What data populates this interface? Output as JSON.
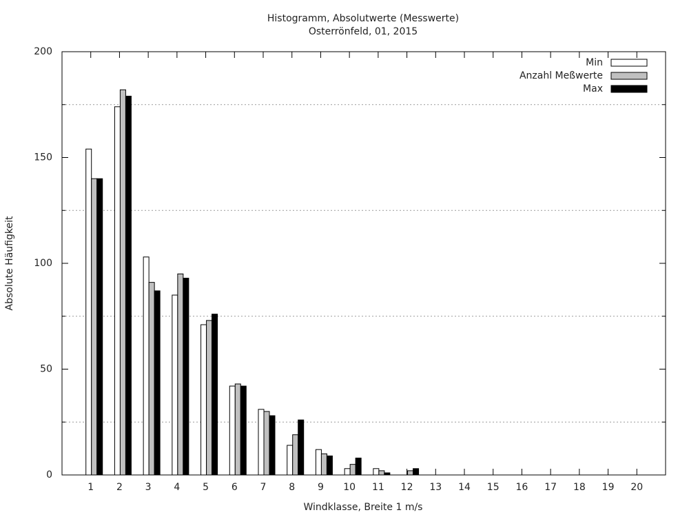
{
  "chart_data": {
    "type": "bar",
    "title": "Histogramm, Absolutwerte (Messwerte)",
    "subtitle": "Osterrönfeld, 01, 2015",
    "x_label": "Windklasse, Breite 1 m/s",
    "y_label": "Absolute Häufigkeit",
    "categories": [
      "1",
      "2",
      "3",
      "4",
      "5",
      "6",
      "7",
      "8",
      "9",
      "10",
      "11",
      "12",
      "13",
      "14",
      "15",
      "16",
      "17",
      "18",
      "19",
      "20"
    ],
    "series": [
      {
        "name": "Min",
        "color": "#ffffff",
        "values": [
          154,
          174,
          103,
          85,
          71,
          42,
          31,
          14,
          12,
          3,
          3,
          0,
          0,
          0,
          0,
          0,
          0,
          0,
          0,
          0
        ]
      },
      {
        "name": "Anzahl Meßwerte",
        "color": "#c0c0c0",
        "values": [
          140,
          182,
          91,
          95,
          73,
          43,
          30,
          19,
          10,
          5,
          2,
          2,
          0,
          0,
          0,
          0,
          0,
          0,
          0,
          0
        ]
      },
      {
        "name": "Max",
        "color": "#000000",
        "values": [
          140,
          179,
          87,
          93,
          76,
          42,
          28,
          26,
          9,
          8,
          1,
          3,
          0,
          0,
          0,
          0,
          0,
          0,
          0,
          0
        ]
      }
    ],
    "ylim": [
      0,
      200
    ],
    "yticks": [
      0,
      50,
      100,
      150,
      200
    ],
    "grid_lines": [
      25,
      75,
      125,
      175
    ],
    "legend": "top-right"
  }
}
